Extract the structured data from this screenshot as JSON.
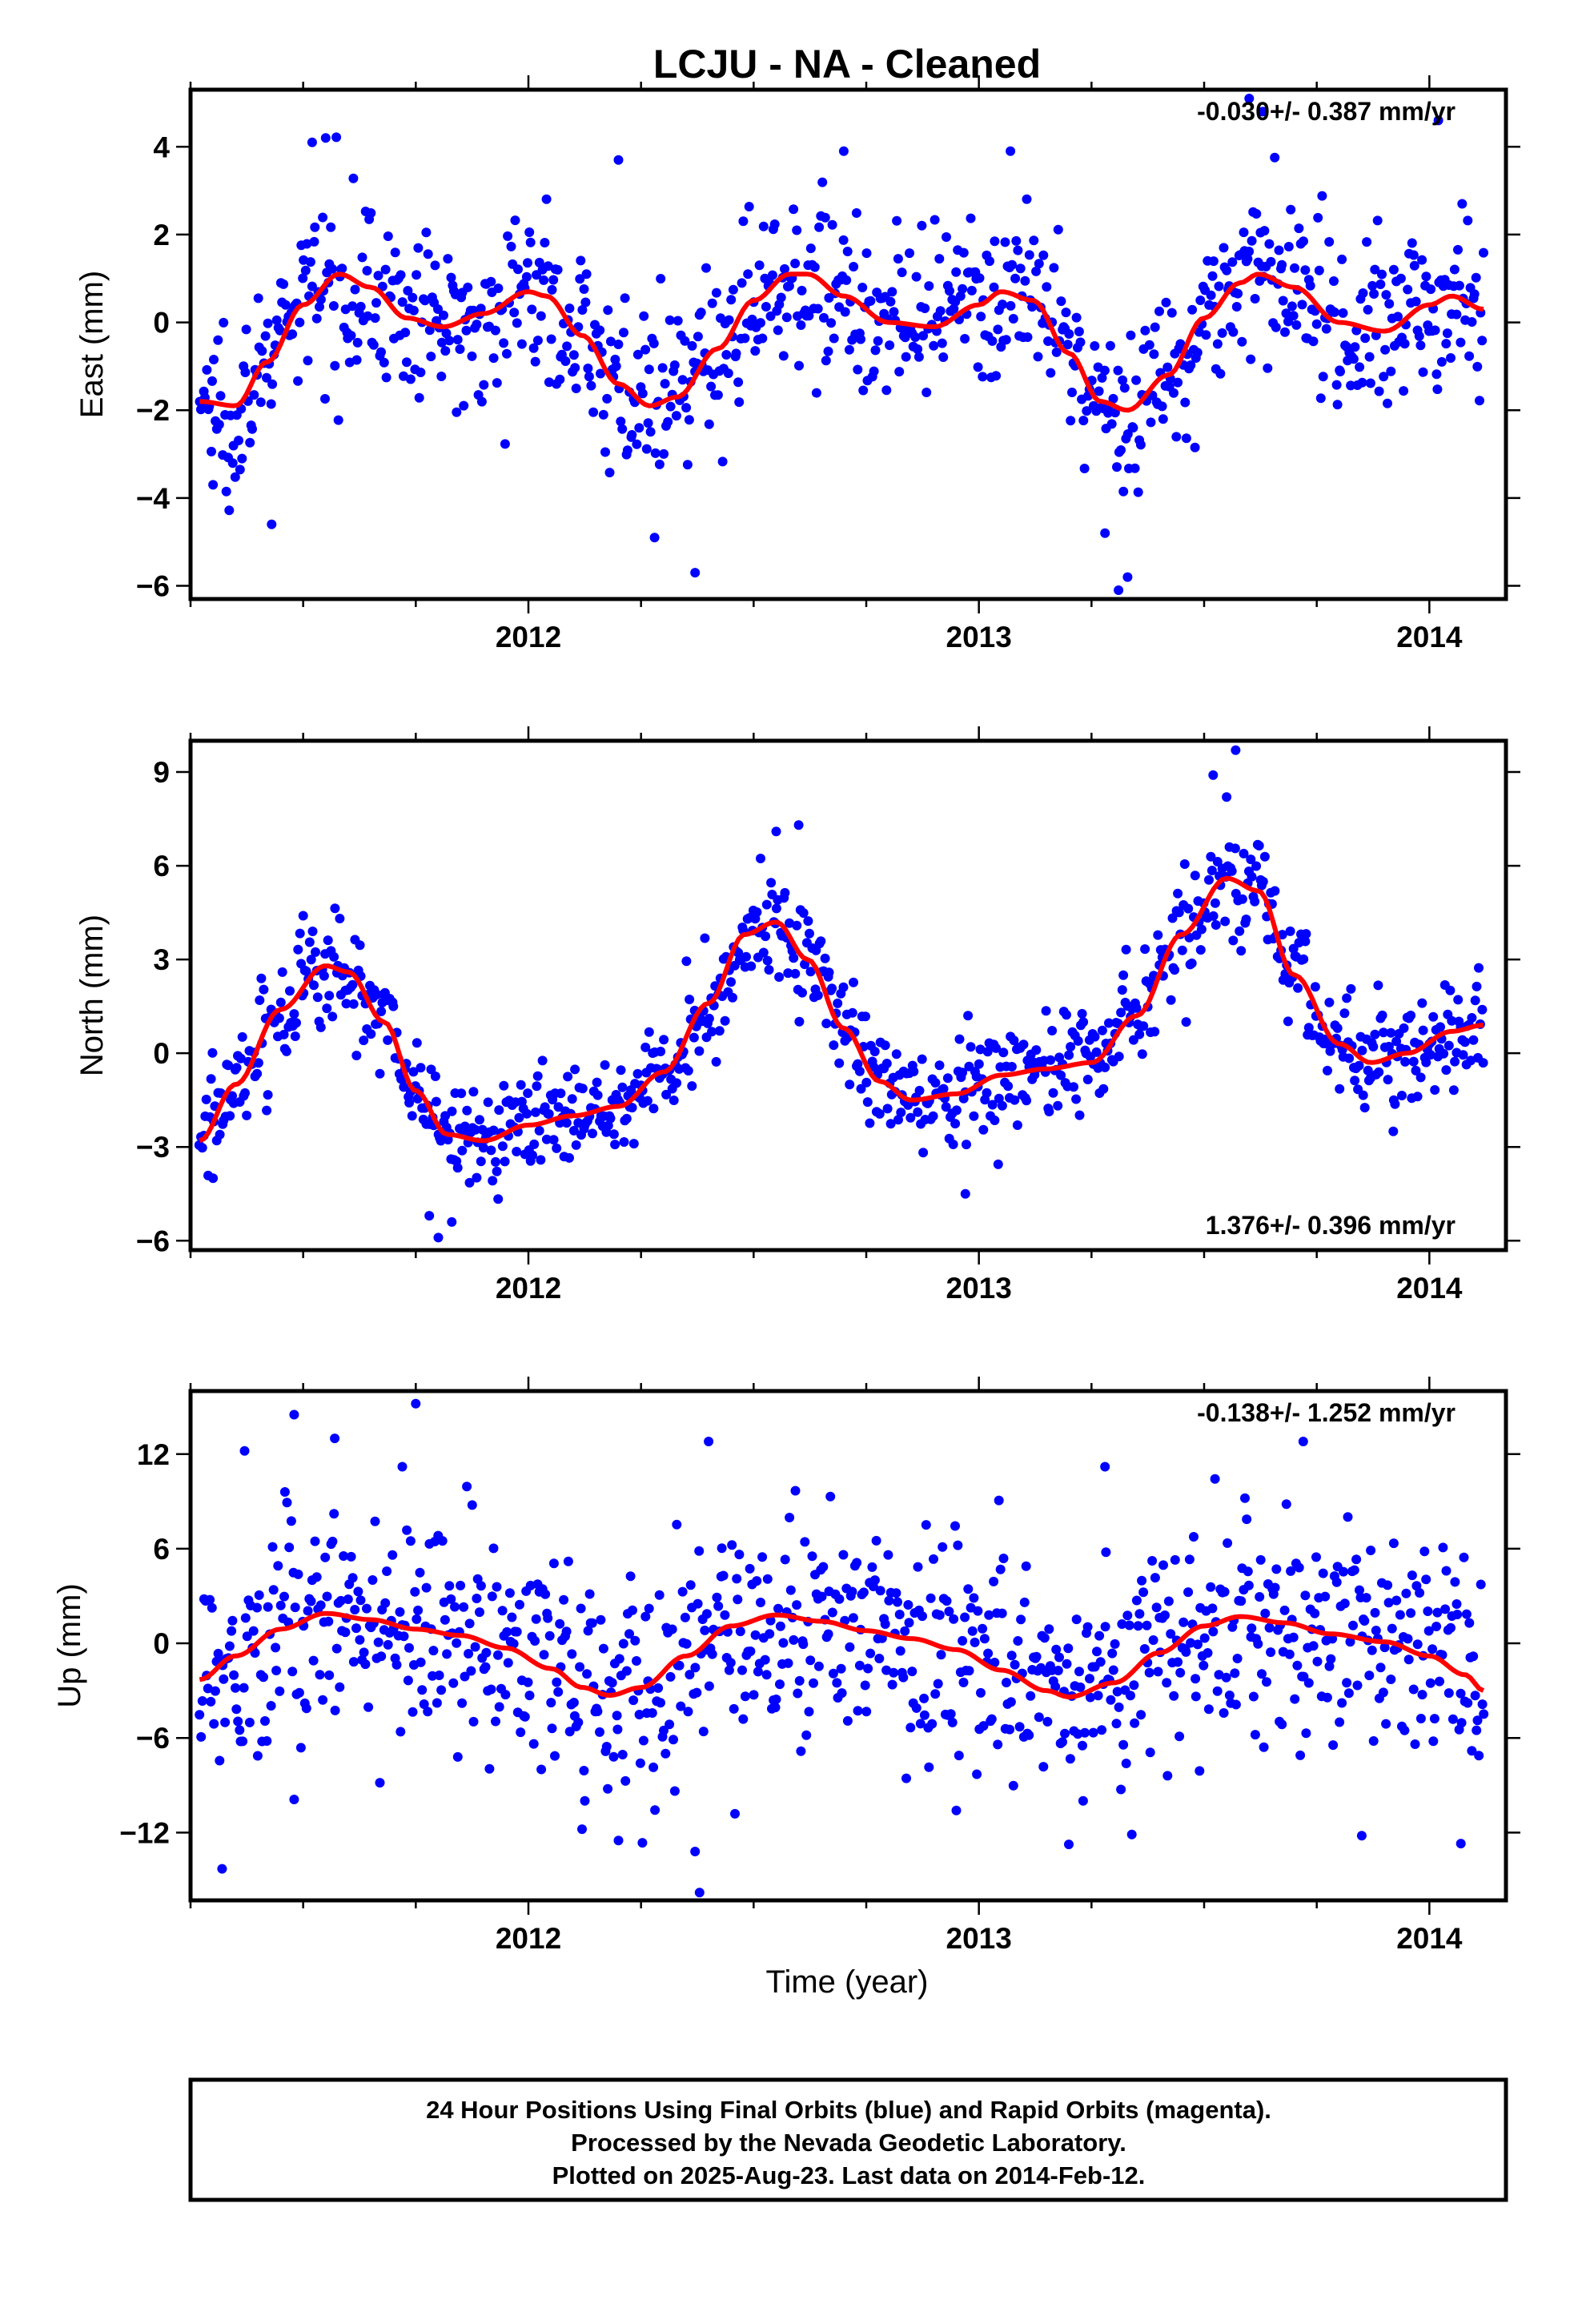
{
  "title": "LCJU  - NA - Cleaned",
  "colors": {
    "final_orbits": "#0000ff",
    "model_fit": "#ff0000",
    "frame": "#000000"
  },
  "x_axis": {
    "label": "Time (year)",
    "range": [
      2011.25,
      2014.17
    ],
    "ticks": [
      "2012",
      "2013",
      "2014"
    ],
    "tick_values": [
      2012,
      2013,
      2014
    ]
  },
  "footer": {
    "line1": "24 Hour Positions Using Final Orbits (blue) and Rapid Orbits (magenta).",
    "line2": "Processed by the Nevada Geodetic Laboratory.",
    "line3": "Plotted on 2025-Aug-23. Last data on 2014-Feb-12."
  },
  "chart_data": [
    {
      "type": "scatter",
      "component": "east",
      "ylabel": "East (mm)",
      "ylim": [
        -6.3,
        5.3
      ],
      "yticks": [
        -6,
        -4,
        -2,
        0,
        2,
        4
      ],
      "ytick_labels": [
        "−6",
        "−4",
        "−2",
        "0",
        "2",
        "4"
      ],
      "rate_text": "-0.030+/- 0.387 mm/yr",
      "rate_position": "top-right",
      "fit": {
        "x": [
          2011.27,
          2011.35,
          2011.42,
          2011.5,
          2011.58,
          2011.65,
          2011.73,
          2011.81,
          2011.9,
          2012.0,
          2012.04,
          2012.12,
          2012.2,
          2012.27,
          2012.33,
          2012.42,
          2012.5,
          2012.58,
          2012.62,
          2012.7,
          2012.8,
          2012.9,
          2013.0,
          2013.05,
          2013.12,
          2013.2,
          2013.27,
          2013.33,
          2013.42,
          2013.5,
          2013.58,
          2013.62,
          2013.7,
          2013.8,
          2013.9,
          2014.0,
          2014.05,
          2014.12
        ],
        "y": [
          -1.8,
          -1.9,
          -0.9,
          0.4,
          1.1,
          0.8,
          0.1,
          -0.1,
          0.2,
          0.7,
          0.6,
          -0.3,
          -1.4,
          -1.9,
          -1.7,
          -0.6,
          0.5,
          1.1,
          1.1,
          0.6,
          0.0,
          -0.1,
          0.4,
          0.7,
          0.5,
          -0.7,
          -1.8,
          -2.0,
          -1.2,
          0.1,
          0.9,
          1.1,
          0.8,
          0.0,
          -0.2,
          0.4,
          0.6,
          0.3
        ]
      },
      "scatter_model": {
        "n": 900,
        "noise_sd_mm": 0.95,
        "outliers": [
          [
            2011.43,
            -4.6
          ],
          [
            2011.3,
            -3.7
          ],
          [
            2012.28,
            -4.9
          ],
          [
            2012.37,
            -5.7
          ],
          [
            2013.28,
            -4.8
          ],
          [
            2013.31,
            -6.1
          ],
          [
            2013.33,
            -5.8
          ],
          [
            2011.52,
            4.1
          ],
          [
            2011.55,
            4.2
          ],
          [
            2012.2,
            3.7
          ],
          [
            2012.7,
            3.9
          ],
          [
            2013.07,
            3.9
          ],
          [
            2013.6,
            5.1
          ],
          [
            2013.63,
            4.8
          ],
          [
            2014.02,
            4.6
          ]
        ]
      }
    },
    {
      "type": "scatter",
      "component": "north",
      "ylabel": "North (mm)",
      "ylim": [
        -6.3,
        10.0
      ],
      "yticks": [
        -6,
        -3,
        0,
        3,
        6,
        9
      ],
      "ytick_labels": [
        "−6",
        "−3",
        "0",
        "3",
        "6",
        "9"
      ],
      "rate_text": "1.376+/- 0.396 mm/yr",
      "rate_position": "bottom-right",
      "fit": {
        "x": [
          2011.27,
          2011.35,
          2011.45,
          2011.55,
          2011.6,
          2011.68,
          2011.75,
          2011.82,
          2011.9,
          2012.0,
          2012.1,
          2012.2,
          2012.3,
          2012.4,
          2012.48,
          2012.55,
          2012.62,
          2012.7,
          2012.78,
          2012.85,
          2012.95,
          2013.05,
          2013.15,
          2013.25,
          2013.35,
          2013.45,
          2013.55,
          2013.62,
          2013.7,
          2013.8,
          2013.87,
          2013.95,
          2014.05,
          2014.12
        ],
        "y": [
          -2.8,
          -1.0,
          1.4,
          2.8,
          2.6,
          1.0,
          -1.2,
          -2.6,
          -2.8,
          -2.3,
          -2.0,
          -1.7,
          -0.6,
          1.6,
          3.8,
          4.2,
          3.0,
          0.8,
          -0.9,
          -1.5,
          -1.3,
          -0.7,
          -0.5,
          -0.3,
          1.2,
          3.8,
          5.6,
          5.2,
          2.5,
          0.3,
          -0.3,
          0.0,
          0.7,
          0.9
        ]
      },
      "scatter_model": {
        "n": 900,
        "noise_sd_mm": 0.9,
        "outliers": [
          [
            2011.3,
            -4.0
          ],
          [
            2011.78,
            -5.2
          ],
          [
            2011.8,
            -5.9
          ],
          [
            2011.83,
            -5.4
          ],
          [
            2012.97,
            -4.5
          ],
          [
            2012.6,
            7.3
          ],
          [
            2012.55,
            7.1
          ],
          [
            2013.52,
            8.9
          ],
          [
            2013.57,
            9.7
          ],
          [
            2013.55,
            8.2
          ],
          [
            2011.5,
            4.4
          ],
          [
            2013.92,
            -2.5
          ]
        ]
      }
    },
    {
      "type": "scatter",
      "component": "up",
      "ylabel": "Up (mm)",
      "ylim": [
        -16.3,
        16.0
      ],
      "yticks": [
        -12,
        -6,
        0,
        6,
        12
      ],
      "ytick_labels": [
        "−12",
        "−6",
        "0",
        "6",
        "12"
      ],
      "rate_text": "-0.138+/- 1.252 mm/yr",
      "rate_position": "top-right",
      "fit": {
        "x": [
          2011.27,
          2011.35,
          2011.45,
          2011.55,
          2011.65,
          2011.75,
          2011.85,
          2011.95,
          2012.05,
          2012.12,
          2012.18,
          2012.25,
          2012.35,
          2012.45,
          2012.55,
          2012.65,
          2012.75,
          2012.85,
          2012.95,
          2013.05,
          2013.15,
          2013.2,
          2013.3,
          2013.4,
          2013.5,
          2013.58,
          2013.68,
          2013.78,
          2013.9,
          2014.0,
          2014.08,
          2014.12
        ],
        "y": [
          -2.3,
          -0.8,
          0.9,
          1.9,
          1.5,
          0.9,
          0.5,
          -0.3,
          -1.6,
          -2.8,
          -3.3,
          -2.8,
          -0.8,
          1.1,
          1.8,
          1.4,
          0.8,
          0.3,
          -0.4,
          -1.7,
          -3.0,
          -3.4,
          -2.5,
          -0.6,
          1.1,
          1.7,
          1.3,
          0.6,
          0.1,
          -0.8,
          -2.0,
          -3.0
        ]
      },
      "scatter_model": {
        "n": 900,
        "noise_sd_mm": 3.6,
        "outliers": [
          [
            2011.32,
            -14.3
          ],
          [
            2011.37,
            12.2
          ],
          [
            2011.48,
            14.5
          ],
          [
            2011.57,
            13.0
          ],
          [
            2011.75,
            15.2
          ],
          [
            2011.72,
            11.2
          ],
          [
            2012.4,
            12.8
          ],
          [
            2012.38,
            -15.8
          ],
          [
            2012.37,
            -13.2
          ],
          [
            2012.2,
            -12.5
          ],
          [
            2013.72,
            12.8
          ],
          [
            2013.28,
            11.2
          ],
          [
            2014.07,
            -12.7
          ],
          [
            2011.48,
            -9.9
          ],
          [
            2013.85,
            -12.2
          ]
        ]
      }
    }
  ]
}
